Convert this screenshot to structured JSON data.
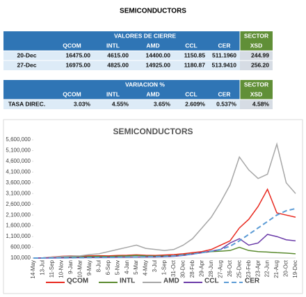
{
  "header": {
    "title": "SEMICONDUCTORS"
  },
  "tables": [
    {
      "title": "VALORES DE CIERRE",
      "sector": "SECTOR",
      "columns": [
        "QCOM",
        "INTL",
        "AMD",
        "CCL",
        "CER",
        "XSD"
      ],
      "rows": [
        [
          "20-Dec",
          "16475.00",
          "4615.00",
          "14400.00",
          "1150.85",
          "511.1960",
          "244.99"
        ],
        [
          "27-Dec",
          "16975.00",
          "4825.00",
          "14925.00",
          "1180.87",
          "513.9410",
          "256.20"
        ]
      ]
    },
    {
      "title": "VARIACION %",
      "sector": "SECTOR",
      "columns": [
        "QCOM",
        "INTL",
        "AMD",
        "CCL",
        "CER",
        "XSD"
      ],
      "rows": [
        [
          "TASA DIREC.",
          "3.03%",
          "4.55%",
          "3.65%",
          "2.609%",
          "0.537%",
          "4.58%"
        ]
      ]
    }
  ],
  "chart_data": {
    "type": "line",
    "title": "SEMICONDUCTORS",
    "categories": [
      "14-May",
      "13-Jul",
      "11-Sep",
      "10-Nov",
      "9-Jan",
      "10-Mar",
      "9-May",
      "8-Jul",
      "6-Sep",
      "5-Nov",
      "4-Jan",
      "5-Mar",
      "4-May",
      "3-Jul",
      "1-Sep",
      "31-Oct",
      "30-Dec",
      "28-Feb",
      "29-Apr",
      "28-Jun",
      "27-Aug",
      "26-Oct",
      "25-Dec",
      "23-Feb",
      "23-Apr",
      "22-Jun",
      "21-Aug",
      "20-Oct",
      "19-Dec"
    ],
    "series": [
      {
        "name": "QCOM",
        "color": "#e8281e",
        "values": [
          100000,
          110000,
          150000,
          180000,
          200000,
          190000,
          200000,
          210000,
          200000,
          220000,
          230000,
          250000,
          230000,
          220000,
          240000,
          260000,
          300000,
          350000,
          400000,
          500000,
          700000,
          900000,
          1500000,
          1900000,
          2500000,
          3300000,
          2200000,
          2100000,
          2000000
        ]
      },
      {
        "name": "INTL",
        "color": "#5a8a2e",
        "values": [
          100000,
          110000,
          130000,
          150000,
          160000,
          150000,
          170000,
          180000,
          170000,
          190000,
          200000,
          220000,
          200000,
          190000,
          200000,
          210000,
          250000,
          300000,
          350000,
          400000,
          420000,
          450000,
          600000,
          450000,
          400000,
          380000,
          350000,
          330000,
          300000
        ]
      },
      {
        "name": "AMD",
        "color": "#a6a6a6",
        "values": [
          100000,
          110000,
          140000,
          170000,
          190000,
          200000,
          260000,
          300000,
          400000,
          500000,
          600000,
          700000,
          550000,
          500000,
          450000,
          500000,
          700000,
          1000000,
          1500000,
          2000000,
          2700000,
          3500000,
          4800000,
          4200000,
          3800000,
          4000000,
          5400000,
          3600000,
          3100000
        ]
      },
      {
        "name": "CCL",
        "color": "#6a3aa8",
        "values": [
          100000,
          100000,
          105000,
          110000,
          115000,
          120000,
          125000,
          130000,
          135000,
          140000,
          145000,
          150000,
          150000,
          150000,
          160000,
          180000,
          220000,
          280000,
          350000,
          420000,
          500000,
          800000,
          1000000,
          700000,
          800000,
          1200000,
          1100000,
          950000,
          900000
        ]
      },
      {
        "name": "CER",
        "color": "#5b9bd5",
        "dash": true,
        "values": [
          100000,
          102000,
          105000,
          108000,
          112000,
          116000,
          120000,
          125000,
          130000,
          136000,
          142000,
          150000,
          158000,
          166000,
          175000,
          200000,
          240000,
          290000,
          350000,
          420000,
          500000,
          650000,
          900000,
          1200000,
          1500000,
          1800000,
          2100000,
          2300000,
          2400000
        ]
      }
    ],
    "ylim": [
      100000,
      5600000
    ],
    "yticks": [
      {
        "value": 100000,
        "label": "100,000"
      },
      {
        "value": 600000,
        "label": "600,000"
      },
      {
        "value": 1100000,
        "label": "1,100,000"
      },
      {
        "value": 1600000,
        "label": "1,600,000"
      },
      {
        "value": 2100000,
        "label": "2,100,000"
      },
      {
        "value": 2600000,
        "label": "2,600,000"
      },
      {
        "value": 3100000,
        "label": "3,100,000"
      },
      {
        "value": 3600000,
        "label": "3,600,000"
      },
      {
        "value": 4100000,
        "label": "4,100,000"
      },
      {
        "value": 4600000,
        "label": "4,600,000"
      },
      {
        "value": 5100000,
        "label": "5,100,000"
      },
      {
        "value": 5600000,
        "label": "5,600,000"
      }
    ],
    "legend": "bottom"
  }
}
